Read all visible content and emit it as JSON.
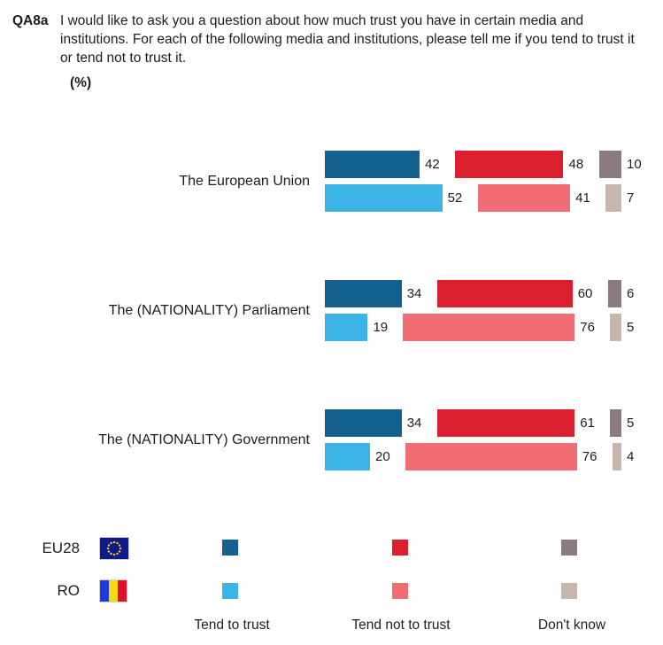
{
  "header": {
    "question_id": "QA8a",
    "question_text": "I would like to ask you a question about how much trust you have in certain media and institutions. For each of the following media and institutions, please tell me if you tend to trust it or tend not to trust it.",
    "unit_label": "(%)"
  },
  "chart_data": {
    "type": "bar",
    "orientation": "horizontal",
    "categories": [
      "The European Union",
      "The (NATIONALITY) Parliament",
      "The (NATIONALITY) Government"
    ],
    "measures": [
      "Tend to trust",
      "Tend not to trust",
      "Don't know"
    ],
    "series": [
      {
        "name": "EU28",
        "color_key": "eu28",
        "values": [
          [
            42,
            48,
            10
          ],
          [
            34,
            60,
            6
          ],
          [
            34,
            61,
            5
          ]
        ]
      },
      {
        "name": "RO",
        "color_key": "ro",
        "values": [
          [
            52,
            41,
            7
          ],
          [
            19,
            76,
            5
          ],
          [
            20,
            76,
            4
          ]
        ]
      }
    ],
    "value_range": [
      0,
      100
    ],
    "grid": false,
    "legend_position": "bottom"
  },
  "colors": {
    "eu28": {
      "trust": "#15618E",
      "not_trust": "#DC1F2E",
      "dont_know": "#8B7A80"
    },
    "ro": {
      "trust": "#3CB4E8",
      "not_trust": "#F26D73",
      "dont_know": "#C7B6AE"
    },
    "flags": {
      "eu_field": "#0D1A8C",
      "eu_stars": "#FFCC00",
      "ro_blue": "#1B3BD9",
      "ro_yellow": "#FCD811",
      "ro_red": "#E0112B"
    },
    "text": "#1D1D1B"
  }
}
